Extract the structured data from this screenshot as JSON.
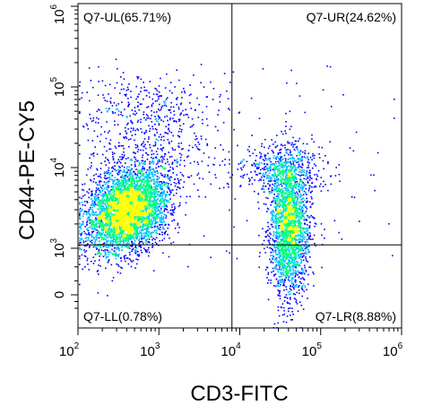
{
  "chart_data": {
    "type": "scatter",
    "subtype": "flow-cytometry-density-dot-plot",
    "xlabel": "CD3-FITC",
    "ylabel": "CD44-PE-CY5",
    "x_scale": "log",
    "xlim": [
      100,
      1000000
    ],
    "x_ticks": [
      {
        "base": "10",
        "exp": "2",
        "value": 100
      },
      {
        "base": "10",
        "exp": "3",
        "value": 1000
      },
      {
        "base": "10",
        "exp": "4",
        "value": 10000
      },
      {
        "base": "10",
        "exp": "5",
        "value": 100000
      },
      {
        "base": "10",
        "exp": "6",
        "value": 1000000
      }
    ],
    "y_scale": "biexponential",
    "y_ticks": [
      {
        "base": "0",
        "exp": "",
        "value": 0
      },
      {
        "base": "10",
        "exp": "3",
        "value": 1000
      },
      {
        "base": "10",
        "exp": "4",
        "value": 10000
      },
      {
        "base": "10",
        "exp": "5",
        "value": 100000
      },
      {
        "base": "10",
        "exp": "6",
        "value": 1000000
      }
    ],
    "gate": {
      "name": "Q7",
      "x_threshold": 8000,
      "y_threshold": 1100
    },
    "quadrants": [
      {
        "label": "Q7-UL(65.71%)",
        "name": "Q7-UL",
        "percent": 65.71,
        "position": "top-left"
      },
      {
        "label": "Q7-UR(24.62%)",
        "name": "Q7-UR",
        "percent": 24.62,
        "position": "top-right"
      },
      {
        "label": "Q7-LL(0.78%)",
        "name": "Q7-LL",
        "percent": 0.78,
        "position": "bottom-left"
      },
      {
        "label": "Q7-LR(8.88%)",
        "name": "Q7-LR",
        "percent": 8.88,
        "position": "bottom-right"
      }
    ],
    "populations": [
      {
        "description": "CD3-low CD44+ cluster",
        "center_x": 400,
        "center_y": 3000,
        "share_percent": 66.5
      },
      {
        "description": "CD3+ CD44+ cluster",
        "center_x": 40000,
        "center_y": 3000,
        "share_percent": 33.5
      }
    ],
    "density_colors": [
      "#0000ff",
      "#00bfff",
      "#00ff7f",
      "#ffff00"
    ],
    "grid": false,
    "legend": "none"
  }
}
